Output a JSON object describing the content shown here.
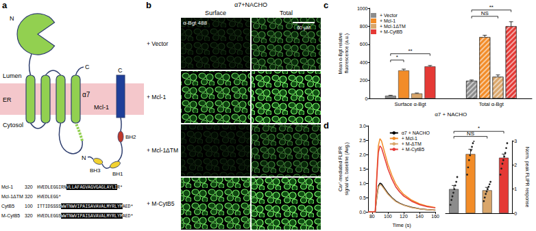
{
  "figure": {
    "panel_labels": [
      "a",
      "b",
      "c",
      "d"
    ],
    "a": {
      "labels": {
        "n_term": "N",
        "c_term": "C",
        "lumen": "Lumen",
        "er": "ER",
        "cytosol": "Cytosol",
        "alpha7": "α7",
        "mcl1": "Mcl-1",
        "mcl1_c": "C",
        "mcl1_n": "N",
        "bh2": "BH2",
        "bh3": "BH3",
        "bh1": "BH1"
      },
      "sequences": [
        {
          "name": "Mcl-1",
          "start": 320,
          "plain": "HVEDLEGGIRN",
          "tm": "VLLAFAGVAGVGAGLAYLI",
          "tail": "R*"
        },
        {
          "name": "Mcl-1ΔTM",
          "start": 320,
          "plain": "HVEDLEGG*"
        },
        {
          "name": "CytB5",
          "start": 100,
          "plain": "ITTIDSSSS",
          "tm": "WWTNWVIPAISAVAVALMYRLYM",
          "tail": "AED*"
        },
        {
          "name": "M-CytB5",
          "start": 320,
          "plain": "HVEDLEGGS",
          "tm": "WWTNWVIPAISAVAVALMYRLYM",
          "tail": "AED*"
        }
      ]
    },
    "b": {
      "title": "α7+NACHO",
      "columns": [
        "Surface",
        "Total"
      ],
      "rows": [
        "+ Vector",
        "+ Mcl-1",
        "+ Mcl-1ΔTM",
        "+ M-CytB5"
      ],
      "stain": "α-Bgt 488",
      "scale_bar": "60 μM"
    }
  },
  "chart_data": [
    {
      "type": "bar",
      "y_label": "Mean α-Bgt relative fluorescence (a.u.)",
      "x_label": "α7 + NACHO",
      "categories": [
        "Surface α-Bgt",
        "Total α-Bgt"
      ],
      "series": [
        {
          "name": "+ Vector",
          "color": "#8c8c8c",
          "values": [
            30,
            195
          ],
          "errors": [
            5,
            10
          ]
        },
        {
          "name": "+ Mcl-1",
          "color": "#f28c28",
          "values": [
            310,
            680
          ],
          "errors": [
            15,
            20
          ]
        },
        {
          "name": "+ Mcl-1ΔTM",
          "color": "#d9a66b",
          "values": [
            55,
            240
          ],
          "errors": [
            5,
            20
          ]
        },
        {
          "name": "+ M-CytB5",
          "color": "#e53935",
          "values": [
            355,
            800
          ],
          "errors": [
            10,
            50
          ]
        }
      ],
      "ylim": [
        0,
        1000
      ],
      "yticks": [
        0,
        200,
        400,
        600,
        800,
        1000
      ],
      "grid": false,
      "legend": "top-left",
      "significance": [
        {
          "category": "Surface α-Bgt",
          "from": "+ Vector",
          "to": "+ Mcl-1",
          "label": "*"
        },
        {
          "category": "Surface α-Bgt",
          "from": "+ Vector",
          "to": "+ M-CytB5",
          "label": "**"
        },
        {
          "category": "Total α-Bgt",
          "from": "+ Vector",
          "to": "+ Mcl-1ΔTM",
          "label": "NS"
        },
        {
          "category": "Total α-Bgt",
          "from": "+ Vector",
          "to": "+ M-CytB5",
          "label": "**"
        }
      ]
    },
    {
      "type": "line",
      "y_label": "Ca²⁺-mediated FLIPR signal vs. baseline (Avg.)",
      "x_label": "Time (s)",
      "x": [
        75,
        80,
        84,
        86,
        88,
        90,
        92,
        95,
        100,
        105,
        110,
        115,
        120,
        130,
        140,
        150,
        160
      ],
      "series": [
        {
          "name": "α7 + NACHO",
          "color": "#000000",
          "values": [
            0,
            0,
            0,
            0.5,
            0.9,
            1.0,
            0.97,
            0.85,
            0.65,
            0.5,
            0.38,
            0.3,
            0.24,
            0.16,
            0.11,
            0.08,
            0.06
          ]
        },
        {
          "name": "+ Mcl-1",
          "color": "#f28c28",
          "values": [
            0,
            0,
            0,
            1.3,
            2.3,
            2.55,
            2.47,
            2.17,
            1.66,
            1.28,
            0.97,
            0.77,
            0.61,
            0.41,
            0.28,
            0.2,
            0.15
          ]
        },
        {
          "name": "+ M-ΔTM",
          "color": "#d9a66b",
          "values": [
            0,
            0,
            0,
            0.48,
            0.86,
            0.95,
            0.92,
            0.81,
            0.62,
            0.48,
            0.36,
            0.29,
            0.23,
            0.15,
            0.1,
            0.08,
            0.06
          ]
        },
        {
          "name": "+ M-CytB5",
          "color": "#e53935",
          "values": [
            0,
            0,
            0,
            1.15,
            2.07,
            2.3,
            2.23,
            1.96,
            1.5,
            1.15,
            0.87,
            0.69,
            0.55,
            0.37,
            0.25,
            0.18,
            0.14
          ]
        }
      ],
      "xlim": [
        75,
        160
      ],
      "xticks": [
        80,
        100,
        120,
        140,
        160
      ],
      "ylim": [
        0,
        3
      ],
      "yticks": [
        {
          "value": 0,
          "label": "0.0"
        },
        {
          "value": 0.5,
          "label": "0.5"
        },
        {
          "value": 1,
          "label": "1.0"
        },
        {
          "value": 1.5,
          "label": "1.5"
        },
        {
          "value": 2,
          "label": "2.0"
        },
        {
          "value": 2.5,
          "label": "2.5"
        },
        {
          "value": 3,
          "label": "3.0"
        }
      ],
      "grid": false,
      "legend": "top-right"
    },
    {
      "type": "bar",
      "y_label": "Norm. peak FLIPR response",
      "categories": [
        null,
        null,
        null,
        null
      ],
      "values": [
        1,
        2.45,
        0.95,
        2.3
      ],
      "errors": [
        0.15,
        0.2,
        0.12,
        0.15
      ],
      "colors": [
        "#8c8c8c",
        "#f28c28",
        "#d9a66b",
        "#e53935"
      ],
      "points": [
        [
          0.35,
          0.55,
          0.7,
          0.85,
          1.0,
          1.15,
          1.3,
          1.5
        ],
        [
          1.6,
          1.9,
          2.2,
          2.4,
          2.6,
          2.75,
          2.9,
          3.0
        ],
        [
          0.5,
          0.65,
          0.8,
          0.9,
          1.0,
          1.1,
          1.2,
          1.3
        ],
        [
          1.6,
          1.85,
          2.05,
          2.2,
          2.35,
          2.5,
          2.7,
          2.9
        ]
      ],
      "ylim": [
        0,
        3
      ],
      "yticks": [
        0,
        1,
        2,
        3
      ],
      "grid": false,
      "significance": [
        {
          "from": 0,
          "to": 2,
          "label": "NS"
        },
        {
          "from": 0,
          "to": 3,
          "label": "*"
        }
      ]
    }
  ]
}
